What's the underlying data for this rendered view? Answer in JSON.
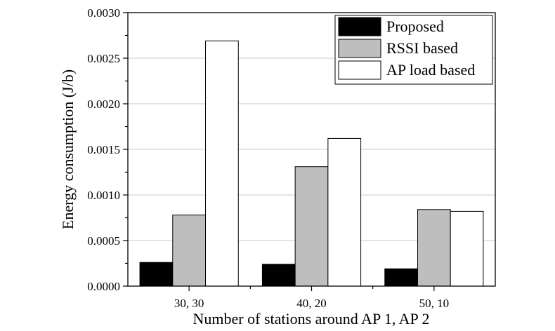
{
  "chart_data": {
    "type": "bar",
    "title": "",
    "xlabel": "Number of stations around AP 1, AP 2",
    "ylabel": "Energy consumption (J/b)",
    "categories": [
      "30, 30",
      "40, 20",
      "50, 10"
    ],
    "ylim": [
      0,
      0.003
    ],
    "yticks": [
      "0.0000",
      "0.0005",
      "0.0010",
      "0.0015",
      "0.0020",
      "0.0025",
      "0.0030"
    ],
    "grid": true,
    "legend_position": "top-right",
    "series": [
      {
        "name": "Proposed",
        "color": "#000000",
        "values": [
          0.00026,
          0.00024,
          0.00019
        ]
      },
      {
        "name": "RSSI based",
        "color": "#bebebe",
        "values": [
          0.00078,
          0.00131,
          0.00084
        ]
      },
      {
        "name": "AP load based",
        "color": "#ffffff",
        "values": [
          0.00269,
          0.00162,
          0.00082
        ]
      }
    ]
  }
}
